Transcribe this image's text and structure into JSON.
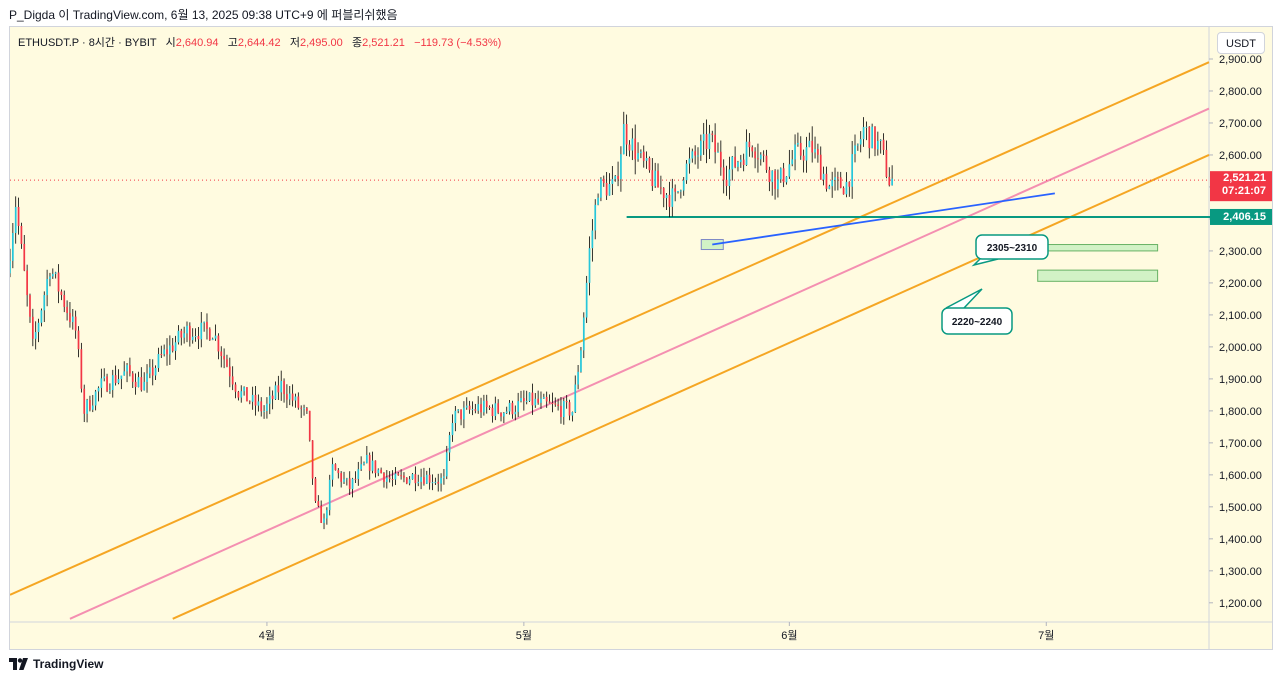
{
  "header": {
    "attribution": "P_Digda 이 TradingView.com, 6월 13, 2025 09:38 UTC+9 에 퍼블리쉬했음"
  },
  "legend": {
    "symbol": "ETHUSDT.P · 8시간 · BYBIT",
    "open_label": "시",
    "open": "2,640.94",
    "high_label": "고",
    "high": "2,644.42",
    "low_label": "저",
    "low": "2,495.00",
    "close_label": "종",
    "close": "2,521.21",
    "change": "−119.73 (−4.53%)"
  },
  "currency": "USDT",
  "price_tags": {
    "last_price": "2,521.21",
    "countdown": "07:21:07",
    "line_level": "2,406.15"
  },
  "zone_labels": {
    "upper": "2305~2310",
    "lower": "2220~2240"
  },
  "footer": {
    "brand": "TradingView"
  },
  "colors": {
    "up": "#26c6da",
    "down": "#f23645",
    "channel": "#f5a623",
    "midline": "#f48fb1",
    "trendline": "#2962ff",
    "level_line": "#089981",
    "zone_fill": "#c8f0c0",
    "background": "#fffbe0"
  },
  "chart_data": {
    "type": "candlestick",
    "title": "ETHUSDT.P · 8시간 · BYBIT",
    "ylim": [
      1140,
      3000
    ],
    "y_ticks": [
      1200,
      1300,
      1400,
      1500,
      1600,
      1700,
      1800,
      1900,
      2000,
      2100,
      2200,
      2300,
      2400,
      2500,
      2600,
      2700,
      2800,
      2900
    ],
    "y_tick_labels": [
      "1,200.00",
      "1,300.00",
      "1,400.00",
      "1,500.00",
      "1,600.00",
      "1,700.00",
      "1,800.00",
      "1,900.00",
      "2,000.00",
      "2,100.00",
      "2,200.00",
      "2,300.00",
      "2,400.00",
      "2,500.00",
      "2,600.00",
      "2,700.00",
      "2,800.00",
      "2,900.00"
    ],
    "x_range": [
      "2025-03-02",
      "2025-07-20"
    ],
    "x_ticks": [
      {
        "date": "2025-04-01",
        "label": "4월"
      },
      {
        "date": "2025-05-01",
        "label": "5월"
      },
      {
        "date": "2025-06-01",
        "label": "6월"
      },
      {
        "date": "2025-07-01",
        "label": "7월"
      }
    ],
    "price_path": [
      {
        "date": "2025-03-02",
        "price": 2230
      },
      {
        "date": "2025-03-03",
        "price": 2450
      },
      {
        "date": "2025-03-05",
        "price": 2000
      },
      {
        "date": "2025-03-07",
        "price": 2250
      },
      {
        "date": "2025-03-10",
        "price": 2050
      },
      {
        "date": "2025-03-11",
        "price": 1800
      },
      {
        "date": "2025-03-13",
        "price": 1880
      },
      {
        "date": "2025-03-16",
        "price": 1920
      },
      {
        "date": "2025-03-18",
        "price": 1880
      },
      {
        "date": "2025-03-20",
        "price": 1970
      },
      {
        "date": "2025-03-23",
        "price": 2050
      },
      {
        "date": "2025-03-26",
        "price": 2050
      },
      {
        "date": "2025-03-29",
        "price": 1860
      },
      {
        "date": "2025-04-01",
        "price": 1800
      },
      {
        "date": "2025-04-03",
        "price": 1880
      },
      {
        "date": "2025-04-06",
        "price": 1780
      },
      {
        "date": "2025-04-07",
        "price": 1500
      },
      {
        "date": "2025-04-08",
        "price": 1450
      },
      {
        "date": "2025-04-09",
        "price": 1620
      },
      {
        "date": "2025-04-11",
        "price": 1560
      },
      {
        "date": "2025-04-13",
        "price": 1640
      },
      {
        "date": "2025-04-16",
        "price": 1580
      },
      {
        "date": "2025-04-19",
        "price": 1600
      },
      {
        "date": "2025-04-22",
        "price": 1580
      },
      {
        "date": "2025-04-23",
        "price": 1780
      },
      {
        "date": "2025-04-26",
        "price": 1810
      },
      {
        "date": "2025-04-29",
        "price": 1800
      },
      {
        "date": "2025-05-02",
        "price": 1830
      },
      {
        "date": "2025-05-05",
        "price": 1810
      },
      {
        "date": "2025-05-07",
        "price": 1800
      },
      {
        "date": "2025-05-08",
        "price": 2000
      },
      {
        "date": "2025-05-09",
        "price": 2300
      },
      {
        "date": "2025-05-10",
        "price": 2500
      },
      {
        "date": "2025-05-12",
        "price": 2500
      },
      {
        "date": "2025-05-13",
        "price": 2680
      },
      {
        "date": "2025-05-15",
        "price": 2580
      },
      {
        "date": "2025-05-17",
        "price": 2500
      },
      {
        "date": "2025-05-19",
        "price": 2460
      },
      {
        "date": "2025-05-20",
        "price": 2550
      },
      {
        "date": "2025-05-23",
        "price": 2650
      },
      {
        "date": "2025-05-25",
        "price": 2540
      },
      {
        "date": "2025-05-28",
        "price": 2640
      },
      {
        "date": "2025-05-31",
        "price": 2510
      },
      {
        "date": "2025-06-02",
        "price": 2600
      },
      {
        "date": "2025-06-04",
        "price": 2620
      },
      {
        "date": "2025-06-06",
        "price": 2500
      },
      {
        "date": "2025-06-08",
        "price": 2510
      },
      {
        "date": "2025-06-10",
        "price": 2680
      },
      {
        "date": "2025-06-12",
        "price": 2620
      },
      {
        "date": "2025-06-13",
        "price": 2521
      }
    ],
    "annotations": {
      "channel_upper": [
        {
          "date": "2025-03-02",
          "price": 1225
        },
        {
          "date": "2025-07-20",
          "price": 2890
        }
      ],
      "channel_mid": [
        {
          "date": "2025-03-09",
          "price": 1150
        },
        {
          "date": "2025-07-20",
          "price": 2745
        }
      ],
      "channel_lower": [
        {
          "date": "2025-03-21",
          "price": 1150
        },
        {
          "date": "2025-07-20",
          "price": 2600
        }
      ],
      "trendline": [
        {
          "date": "2025-05-23",
          "price": 2320
        },
        {
          "date": "2025-07-02",
          "price": 2480
        }
      ],
      "horizontal_level": 2406.15,
      "zone_upper": [
        2305,
        2310
      ],
      "zone_lower": [
        2220,
        2240
      ],
      "small_box_date": "2025-05-23",
      "small_box_price": 2320,
      "last_price": 2521.21
    }
  }
}
